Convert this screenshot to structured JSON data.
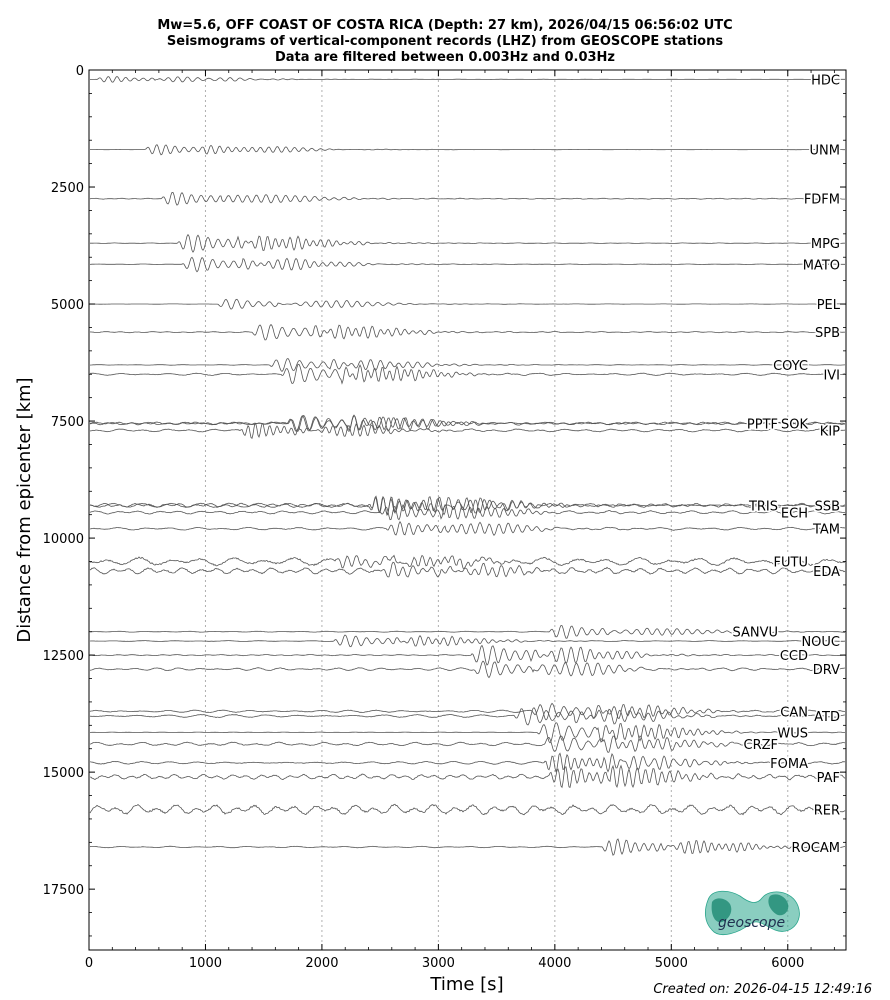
{
  "chart_data": {
    "type": "line",
    "title_lines": [
      "Mw=5.6, OFF COAST OF COSTA RICA (Depth: 27 km), 2026/04/15 06:56:02 UTC",
      "Seismograms of vertical-component records (LHZ) from GEOSCOPE stations",
      "Data are filtered between 0.003Hz and 0.03Hz"
    ],
    "xlabel": "Time [s]",
    "ylabel": "Distance from epicenter [km]",
    "xlim": [
      0,
      6500
    ],
    "ylim": [
      18800,
      0
    ],
    "xticks": [
      0,
      1000,
      2000,
      3000,
      4000,
      5000,
      6000
    ],
    "yticks": [
      0,
      2500,
      5000,
      7500,
      10000,
      12500,
      15000,
      17500
    ],
    "grid": "vertical dotted at x ticks",
    "stations": [
      {
        "name": "HDC",
        "distance": 200,
        "arrival": 60,
        "noise": 0.15,
        "burst": 4,
        "col": 0
      },
      {
        "name": "UNM",
        "distance": 1700,
        "arrival": 480,
        "noise": 0.2,
        "burst": 7,
        "col": 0
      },
      {
        "name": "FDFM",
        "distance": 2750,
        "arrival": 620,
        "noise": 0.5,
        "burst": 9,
        "col": 0
      },
      {
        "name": "MPG",
        "distance": 3700,
        "arrival": 760,
        "noise": 0.3,
        "burst": 12,
        "col": 0
      },
      {
        "name": "MATO",
        "distance": 4150,
        "arrival": 800,
        "noise": 0.3,
        "burst": 10,
        "col": 0
      },
      {
        "name": "PEL",
        "distance": 5000,
        "arrival": 1100,
        "noise": 0.2,
        "burst": 7,
        "col": 0
      },
      {
        "name": "SPB",
        "distance": 5600,
        "arrival": 1400,
        "noise": 0.6,
        "burst": 11,
        "col": 0
      },
      {
        "name": "COYC",
        "distance": 6300,
        "arrival": 1550,
        "noise": 0.3,
        "burst": 9,
        "col": 2
      },
      {
        "name": "IVI",
        "distance": 6500,
        "arrival": 1650,
        "noise": 1.2,
        "burst": 13,
        "col": 0
      },
      {
        "name": "PPTF",
        "distance": 7550,
        "arrival": 1700,
        "noise": 1.5,
        "burst": 12,
        "col": 3
      },
      {
        "name": "SOK",
        "distance": 7550,
        "arrival": 1700,
        "noise": 1.5,
        "burst": 12,
        "col": 2
      },
      {
        "name": "KIP",
        "distance": 7700,
        "arrival": 1300,
        "noise": 1.6,
        "burst": 10,
        "col": 0
      },
      {
        "name": "TRIS",
        "distance": 9300,
        "arrival": 2400,
        "noise": 2.2,
        "burst": 12,
        "col": 3
      },
      {
        "name": "SSB",
        "distance": 9300,
        "arrival": 2400,
        "noise": 2.2,
        "burst": 12,
        "col": 0
      },
      {
        "name": "ECH",
        "distance": 9450,
        "arrival": 2500,
        "noise": 1.8,
        "burst": 10,
        "col": 2
      },
      {
        "name": "TAM",
        "distance": 9800,
        "arrival": 2550,
        "noise": 1.5,
        "burst": 9,
        "col": 0
      },
      {
        "name": "FUTU",
        "distance": 10500,
        "arrival": 2100,
        "noise": 4.5,
        "burst": 8,
        "col": 2
      },
      {
        "name": "EDA",
        "distance": 10700,
        "arrival": 2500,
        "noise": 3.5,
        "burst": 9,
        "col": 0
      },
      {
        "name": "SANVU",
        "distance": 12000,
        "arrival": 3950,
        "noise": 0.5,
        "burst": 9,
        "col": 3
      },
      {
        "name": "NOUC",
        "distance": 12200,
        "arrival": 2100,
        "noise": 0.5,
        "burst": 8,
        "col": 0
      },
      {
        "name": "CCD",
        "distance": 12500,
        "arrival": 3280,
        "noise": 0.6,
        "burst": 14,
        "col": 2
      },
      {
        "name": "DRV",
        "distance": 12800,
        "arrival": 3300,
        "noise": 1.5,
        "burst": 11,
        "col": 0
      },
      {
        "name": "CAN",
        "distance": 13700,
        "arrival": 3800,
        "noise": 1.3,
        "burst": 11,
        "col": 2
      },
      {
        "name": "ATD",
        "distance": 13800,
        "arrival": 3650,
        "noise": 1.6,
        "burst": 12,
        "col": 0
      },
      {
        "name": "WUS",
        "distance": 14150,
        "arrival": 3850,
        "noise": 0.3,
        "burst": 14,
        "col": 2
      },
      {
        "name": "CRZF",
        "distance": 14400,
        "arrival": 3900,
        "noise": 2.0,
        "burst": 12,
        "col": 3
      },
      {
        "name": "FOMA",
        "distance": 14800,
        "arrival": 3900,
        "noise": 1.5,
        "burst": 12,
        "col": 2
      },
      {
        "name": "PAF",
        "distance": 15100,
        "arrival": 3950,
        "noise": 2.8,
        "burst": 14,
        "col": 0
      },
      {
        "name": "RER",
        "distance": 15800,
        "arrival": 0,
        "noise": 5.5,
        "burst": 0,
        "col": 0
      },
      {
        "name": "ROCAM",
        "distance": 16600,
        "arrival": 4400,
        "noise": 0.8,
        "burst": 11,
        "col": 0
      }
    ]
  },
  "footer": "Created on: 2026-04-15 12:49:16",
  "logo_text": "geoscope",
  "colors": {
    "trace": "#555555",
    "axis": "#000000",
    "grid": "#b0b0b0",
    "logo": "#2aa58c"
  }
}
